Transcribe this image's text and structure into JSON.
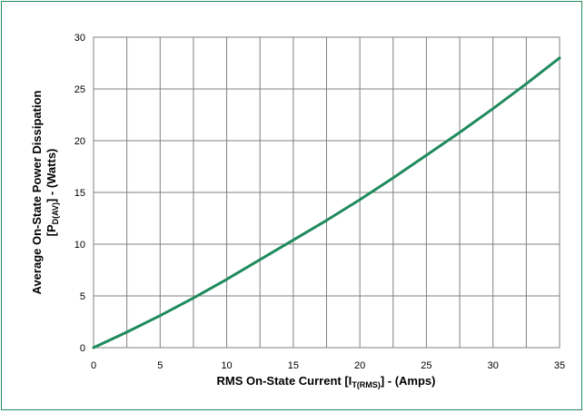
{
  "chart_data": {
    "type": "line",
    "title": "",
    "xlabel": {
      "main": "RMS On-State Current [I",
      "sub": "T(RMS)",
      "tail": "] - (Amps)"
    },
    "ylabel": {
      "line1": "Average On-State Power Dissipation",
      "line2_main": "[P",
      "line2_sub": "D(AV)",
      "line2_tail": "] - (Watts)"
    },
    "xlim": [
      0,
      35
    ],
    "ylim": [
      0,
      30
    ],
    "x_ticks": [
      0,
      5,
      10,
      15,
      20,
      25,
      30,
      35
    ],
    "y_ticks": [
      0,
      5,
      10,
      15,
      20,
      25,
      30
    ],
    "x_grid_step": 2.5,
    "y_grid_step": 5,
    "grid": true,
    "series": [
      {
        "color": "#1f8a5c",
        "x": [
          0,
          2.5,
          5,
          7.5,
          10,
          12.5,
          15,
          17.5,
          20,
          22.5,
          25,
          27.5,
          30,
          32.5,
          35
        ],
        "y": [
          0,
          1.5,
          3.1,
          4.8,
          6.6,
          8.5,
          10.4,
          12.3,
          14.3,
          16.4,
          18.6,
          20.8,
          23.1,
          25.5,
          28.0
        ]
      }
    ]
  }
}
